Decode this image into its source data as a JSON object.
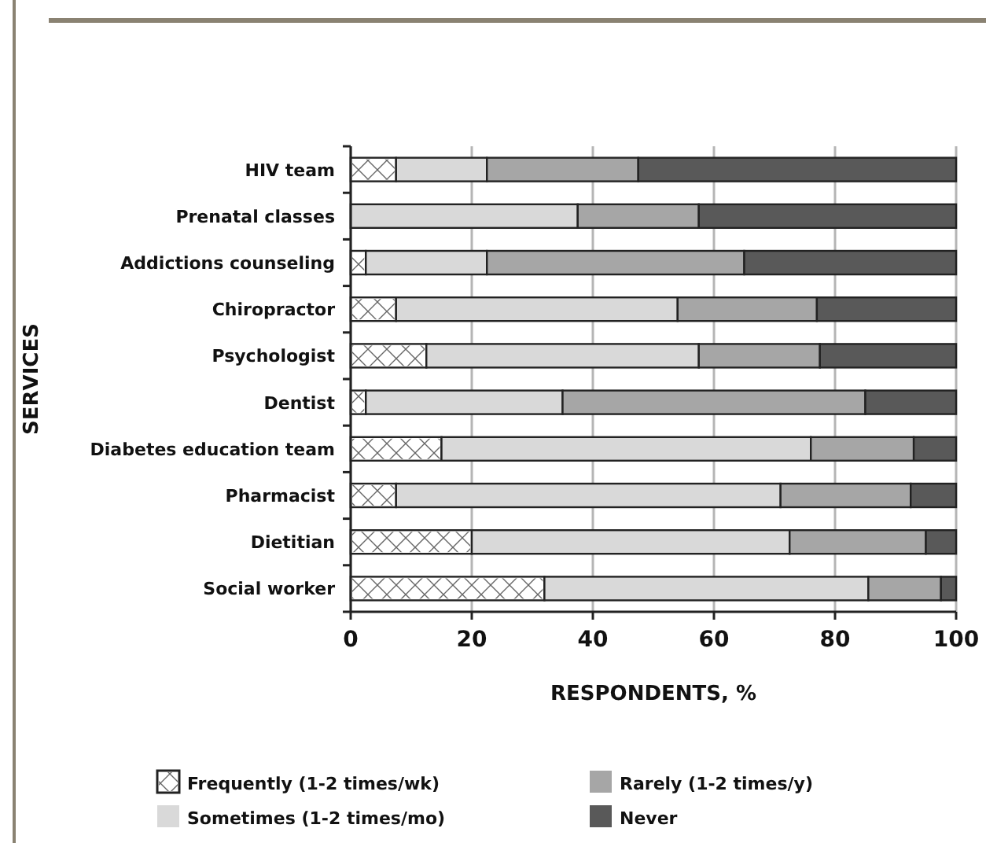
{
  "chart_data": {
    "type": "bar",
    "orientation": "horizontal",
    "stacked": true,
    "ylabel": "SERVICES",
    "xlabel": "RESPONDENTS, %",
    "categories": [
      "HIV team",
      "Prenatal classes",
      "Addictions counseling",
      "Chiropractor",
      "Psychologist",
      "Dentist",
      "Diabetes education team",
      "Pharmacist",
      "Dietitian",
      "Social worker"
    ],
    "series": [
      {
        "name": "Frequently (1-2 times/wk)",
        "color": "#ffffff",
        "values": [
          7.5,
          0,
          2.5,
          7.5,
          12.5,
          2.5,
          15,
          7.5,
          20,
          32
        ]
      },
      {
        "name": "Sometimes (1-2 times/mo)",
        "color": "#d9d9d9",
        "values": [
          15,
          37.5,
          20,
          46.5,
          45,
          32.5,
          61,
          63.5,
          52.5,
          53.5
        ]
      },
      {
        "name": "Rarely (1-2 times/y)",
        "color": "#a6a6a6",
        "values": [
          25,
          20,
          42.5,
          23,
          20,
          50,
          17,
          21.5,
          22.5,
          12
        ]
      },
      {
        "name": "Never",
        "color": "#595959",
        "values": [
          52.5,
          42.5,
          35,
          23,
          22.5,
          15,
          7,
          7.5,
          5,
          2.5
        ]
      }
    ],
    "xlim": [
      0,
      100
    ],
    "xticks": [
      0,
      20,
      40,
      60,
      80,
      100
    ],
    "grid": "x",
    "legend": "bottom"
  }
}
